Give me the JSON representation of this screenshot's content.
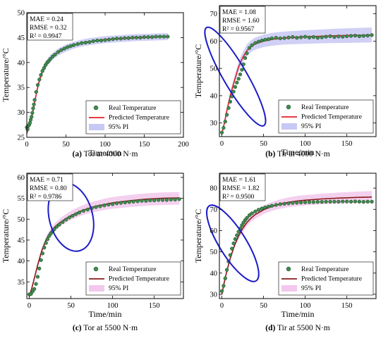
{
  "chart_data": [
    {
      "id": "a",
      "type": "scatter",
      "caption_letter": "(a)",
      "caption_text": " Tor at 4000 N·m",
      "xlabel": "Time/min",
      "ylabel": "Temperature/°C",
      "xlim": [
        0,
        200
      ],
      "ylim": [
        25,
        50
      ],
      "xticks": [
        0,
        50,
        100,
        150,
        200
      ],
      "yticks": [
        25,
        30,
        35,
        40,
        45,
        50
      ],
      "metrics": [
        "MAE = 0.24",
        "RMSE = 0.32",
        "R² = 0.9947"
      ],
      "metrics_position": "top-left",
      "legend": [
        "Real Temperature",
        "Predicted Temperature",
        "95% PI"
      ],
      "legend_position": "bottom-right",
      "colors": {
        "real": "#3c8c4c",
        "pred": "#e0202a",
        "pi": "#c8c8f4"
      },
      "real": {
        "x": [
          0,
          1,
          2,
          3,
          4,
          5,
          6,
          7,
          8,
          9,
          10,
          12,
          14,
          16,
          18,
          20,
          22,
          24,
          26,
          28,
          30,
          33,
          36,
          40,
          44,
          48,
          52,
          56,
          60,
          65,
          70,
          75,
          80,
          85,
          90,
          95,
          100,
          105,
          110,
          115,
          120,
          125,
          130,
          135,
          140,
          145,
          150,
          155,
          160,
          165,
          170,
          175,
          180
        ],
        "y": [
          27.0,
          26.6,
          27.3,
          27.5,
          27.9,
          28.5,
          29.1,
          29.9,
          30.8,
          31.6,
          32.5,
          34.1,
          35.5,
          36.6,
          37.5,
          38.3,
          38.9,
          39.5,
          40.0,
          40.3,
          40.7,
          41.2,
          41.6,
          42.1,
          42.5,
          42.8,
          43.1,
          43.3,
          43.5,
          43.7,
          43.9,
          44.0,
          44.1,
          44.3,
          44.4,
          44.4,
          44.5,
          44.6,
          44.7,
          44.8,
          44.8,
          44.9,
          44.9,
          45.0,
          45.0,
          45.0,
          45.1,
          45.1,
          45.1,
          45.2,
          45.2,
          45.2,
          45.2
        ]
      },
      "predicted": {
        "x": [
          0,
          2,
          4,
          6,
          8,
          10,
          12,
          14,
          17,
          20,
          25,
          30,
          35,
          40,
          50,
          60,
          70,
          80,
          90,
          100,
          120,
          140,
          160,
          180
        ],
        "y": [
          25.8,
          26.9,
          27.8,
          29.0,
          30.3,
          31.9,
          33.6,
          35.1,
          36.9,
          38.3,
          39.8,
          40.8,
          41.5,
          42.1,
          42.9,
          43.5,
          43.9,
          44.2,
          44.4,
          44.6,
          44.8,
          45.0,
          45.1,
          45.2
        ]
      },
      "pi_lower": [
        25.3,
        26.3,
        27.2,
        28.3,
        29.6,
        31.2,
        32.9,
        34.4,
        36.2,
        37.6,
        39.1,
        40.1,
        40.8,
        41.4,
        42.2,
        42.8,
        43.2,
        43.5,
        43.7,
        43.9,
        44.1,
        44.3,
        44.4,
        44.5
      ],
      "pi_upper": [
        26.3,
        27.5,
        28.4,
        29.7,
        31.0,
        32.6,
        34.3,
        35.8,
        37.6,
        39.0,
        40.5,
        41.5,
        42.2,
        42.8,
        43.6,
        44.2,
        44.6,
        44.9,
        45.1,
        45.3,
        45.5,
        45.7,
        45.8,
        45.9
      ]
    },
    {
      "id": "b",
      "type": "scatter",
      "caption_letter": "(b)",
      "caption_text": " Tir at 4000 N·m",
      "xlabel": "Time/min",
      "ylabel": "Temperature/°C",
      "xlim": [
        -3,
        185
      ],
      "ylim": [
        25,
        73
      ],
      "xticks": [
        0,
        50,
        100,
        150
      ],
      "yticks": [
        30,
        40,
        50,
        60,
        70
      ],
      "metrics": [
        "MAE = 1.08",
        "RMSE = 1.60",
        "R² = 0.9567"
      ],
      "metrics_position": "top-left",
      "legend": [
        "Real Temperature",
        "Predicted Temperature",
        "95% PI"
      ],
      "legend_position": "bottom-right",
      "colors": {
        "real": "#3c8c4c",
        "pred": "#e0202a",
        "pi": "#c8c8f4"
      },
      "highlight": {
        "cx": 16,
        "cy": 47,
        "rx": 14,
        "ry": 6.5,
        "rotate": -55
      },
      "real": {
        "x": [
          0,
          2,
          4,
          6,
          8,
          10,
          12,
          14,
          16,
          18,
          20,
          22,
          24,
          26,
          28,
          30,
          33,
          36,
          40,
          44,
          48,
          52,
          56,
          60,
          65,
          70,
          75,
          80,
          85,
          90,
          95,
          100,
          105,
          110,
          115,
          120,
          125,
          130,
          135,
          140,
          145,
          150,
          155,
          160,
          165,
          170,
          175,
          180
        ],
        "y": [
          26.5,
          28.2,
          30.5,
          33.0,
          35.5,
          37.8,
          39.7,
          41.5,
          43.2,
          44.8,
          46.2,
          47.8,
          49.5,
          51.5,
          53.8,
          55.5,
          57.5,
          58.5,
          59.3,
          59.8,
          60.2,
          60.5,
          60.7,
          61.0,
          61.2,
          61.0,
          61.1,
          61.3,
          61.5,
          61.2,
          61.4,
          61.6,
          61.3,
          61.5,
          61.2,
          61.4,
          61.6,
          61.8,
          61.5,
          61.7,
          61.6,
          61.8,
          61.9,
          62.0,
          61.8,
          61.9,
          62.0,
          62.2
        ]
      },
      "predicted": {
        "x": [
          0,
          3,
          6,
          10,
          15,
          20,
          25,
          30,
          35,
          40,
          50,
          60,
          70,
          80,
          90,
          100,
          120,
          140,
          160,
          180
        ],
        "y": [
          26.0,
          30.0,
          34.5,
          40.0,
          45.5,
          50.5,
          54.0,
          56.5,
          58.0,
          59.0,
          60.0,
          60.6,
          61.0,
          61.2,
          61.4,
          61.6,
          61.8,
          62.0,
          62.1,
          62.2
        ]
      },
      "pi_lower": [
        25.5,
        29.2,
        33.5,
        38.8,
        44.2,
        49.0,
        52.3,
        54.6,
        56.0,
        56.9,
        57.8,
        58.3,
        58.6,
        58.8,
        58.9,
        59.0,
        59.2,
        59.3,
        59.4,
        59.5
      ],
      "pi_upper": [
        27.0,
        31.2,
        35.8,
        41.5,
        47.0,
        52.5,
        56.0,
        58.8,
        60.3,
        61.3,
        62.4,
        63.0,
        63.4,
        63.6,
        63.8,
        64.0,
        64.3,
        64.6,
        64.8,
        65.0
      ]
    },
    {
      "id": "c",
      "type": "scatter",
      "caption_letter": "(c)",
      "caption_text": " Tor at 5500 N·m",
      "xlabel": "Time/min",
      "ylabel": "Temperature/°C",
      "xlim": [
        -3,
        185
      ],
      "ylim": [
        31,
        61
      ],
      "xticks": [
        0,
        50,
        100,
        150
      ],
      "yticks": [
        35,
        40,
        45,
        50,
        55,
        60
      ],
      "metrics": [
        "MAE = 0.71",
        "RMSE = 0.80",
        "R² = 0.9786"
      ],
      "metrics_position": "top-left",
      "legend": [
        "Real Temperature",
        "Predicted Temperature",
        "95% PI"
      ],
      "legend_position": "bottom-right",
      "colors": {
        "real": "#3c8c4c",
        "pred": "#8b1a1a",
        "pi": "#f2c8ec"
      },
      "highlight": {
        "cx": 50,
        "cy": 50.5,
        "rx": 26,
        "ry": 2.6,
        "rotate": -26
      },
      "real": {
        "x": [
          0,
          2,
          4,
          6,
          8,
          10,
          12,
          14,
          16,
          18,
          20,
          22,
          24,
          26,
          28,
          30,
          33,
          36,
          40,
          44,
          48,
          52,
          56,
          60,
          65,
          70,
          75,
          80,
          85,
          90,
          95,
          100,
          105,
          110,
          115,
          120,
          125,
          130,
          135,
          140,
          145,
          150,
          155,
          160,
          165,
          170,
          175,
          180
        ],
        "y": [
          32.0,
          32.1,
          32.7,
          33.3,
          34.5,
          36.2,
          38.2,
          40.2,
          41.8,
          43.2,
          44.3,
          45.2,
          46.0,
          46.6,
          47.1,
          47.6,
          48.2,
          48.7,
          49.3,
          49.9,
          50.4,
          50.8,
          51.2,
          51.6,
          52.0,
          52.3,
          52.6,
          52.9,
          53.1,
          53.3,
          53.5,
          53.6,
          53.8,
          53.9,
          54.0,
          54.1,
          54.2,
          54.3,
          54.4,
          54.4,
          54.5,
          54.5,
          54.6,
          54.6,
          54.6,
          54.7,
          54.7,
          54.8
        ]
      },
      "predicted": {
        "x": [
          0,
          3,
          6,
          10,
          15,
          20,
          25,
          30,
          35,
          40,
          50,
          60,
          70,
          80,
          90,
          100,
          120,
          140,
          160,
          180
        ],
        "y": [
          31.5,
          33.5,
          35.8,
          39.0,
          42.5,
          45.0,
          46.8,
          48.0,
          48.9,
          49.6,
          50.8,
          51.8,
          52.5,
          53.1,
          53.5,
          53.9,
          54.4,
          54.8,
          55.0,
          55.1
        ]
      },
      "pi_lower": [
        31.0,
        33.0,
        35.2,
        38.4,
        41.9,
        44.4,
        46.1,
        47.2,
        48.1,
        48.7,
        49.8,
        50.7,
        51.3,
        51.8,
        52.2,
        52.5,
        52.9,
        53.2,
        53.4,
        53.5
      ],
      "pi_upper": [
        32.0,
        34.1,
        36.5,
        39.7,
        43.2,
        45.8,
        47.6,
        48.9,
        49.9,
        50.7,
        52.0,
        53.0,
        53.8,
        54.4,
        54.9,
        55.3,
        55.8,
        56.2,
        56.4,
        56.5
      ]
    },
    {
      "id": "d",
      "type": "scatter",
      "caption_letter": "(d)",
      "caption_text": " Tir at 5500 N·m",
      "xlabel": "Time/min",
      "ylabel": "Temperature/°C",
      "xlim": [
        -3,
        185
      ],
      "ylim": [
        28,
        87
      ],
      "xticks": [
        0,
        50,
        100,
        150
      ],
      "yticks": [
        30,
        40,
        50,
        60,
        70,
        80
      ],
      "metrics": [
        "MAE = 1.61",
        "RMSE = 1.82",
        "R² = 0.9500"
      ],
      "metrics_position": "top-left",
      "legend": [
        "Real Temperature",
        "Predicted Temperature",
        "95% PI"
      ],
      "legend_position": "bottom-right",
      "colors": {
        "real": "#3c8c4c",
        "pred": "#8b1a1a",
        "pi": "#f2c8ec"
      },
      "highlight": {
        "cx": 13,
        "cy": 54,
        "rx": 16,
        "ry": 6.5,
        "rotate": -58
      },
      "real": {
        "x": [
          0,
          2,
          4,
          6,
          8,
          10,
          12,
          14,
          16,
          18,
          20,
          22,
          24,
          26,
          28,
          30,
          33,
          36,
          40,
          44,
          48,
          52,
          56,
          60,
          65,
          70,
          75,
          80,
          85,
          90,
          95,
          100,
          105,
          110,
          115,
          120,
          125,
          130,
          135,
          140,
          145,
          150,
          155,
          160,
          165,
          170,
          175,
          180
        ],
        "y": [
          31.5,
          34.0,
          37.5,
          41.5,
          45.5,
          48.5,
          51.5,
          54.0,
          56.0,
          57.8,
          59.5,
          61.0,
          62.5,
          63.8,
          65.0,
          66.0,
          67.2,
          68.1,
          69.0,
          69.8,
          70.4,
          70.9,
          71.3,
          71.7,
          72.1,
          72.4,
          72.6,
          72.8,
          73.0,
          73.1,
          73.2,
          73.3,
          73.4,
          73.4,
          73.5,
          73.5,
          73.6,
          73.6,
          73.6,
          73.6,
          73.7,
          73.7,
          73.6,
          73.7,
          73.6,
          73.5,
          73.6,
          73.6
        ]
      },
      "predicted": {
        "x": [
          0,
          3,
          6,
          10,
          15,
          20,
          25,
          30,
          35,
          40,
          50,
          60,
          70,
          80,
          90,
          100,
          120,
          140,
          160,
          180
        ],
        "y": [
          30.0,
          36.0,
          41.0,
          47.0,
          53.0,
          57.5,
          61.0,
          63.8,
          65.9,
          67.5,
          69.8,
          71.4,
          72.5,
          73.3,
          73.9,
          74.3,
          74.9,
          75.3,
          75.6,
          75.8
        ]
      },
      "pi_lower": [
        29.0,
        35.0,
        40.0,
        45.8,
        51.7,
        56.0,
        59.4,
        62.1,
        64.1,
        65.6,
        67.8,
        69.3,
        70.3,
        71.0,
        71.5,
        71.9,
        72.4,
        72.7,
        72.9,
        73.0
      ],
      "pi_upper": [
        31.0,
        37.0,
        42.0,
        48.3,
        54.3,
        59.0,
        62.6,
        65.5,
        67.7,
        69.4,
        71.8,
        73.5,
        74.7,
        75.6,
        76.3,
        76.7,
        77.4,
        77.9,
        78.3,
        78.6
      ]
    }
  ]
}
